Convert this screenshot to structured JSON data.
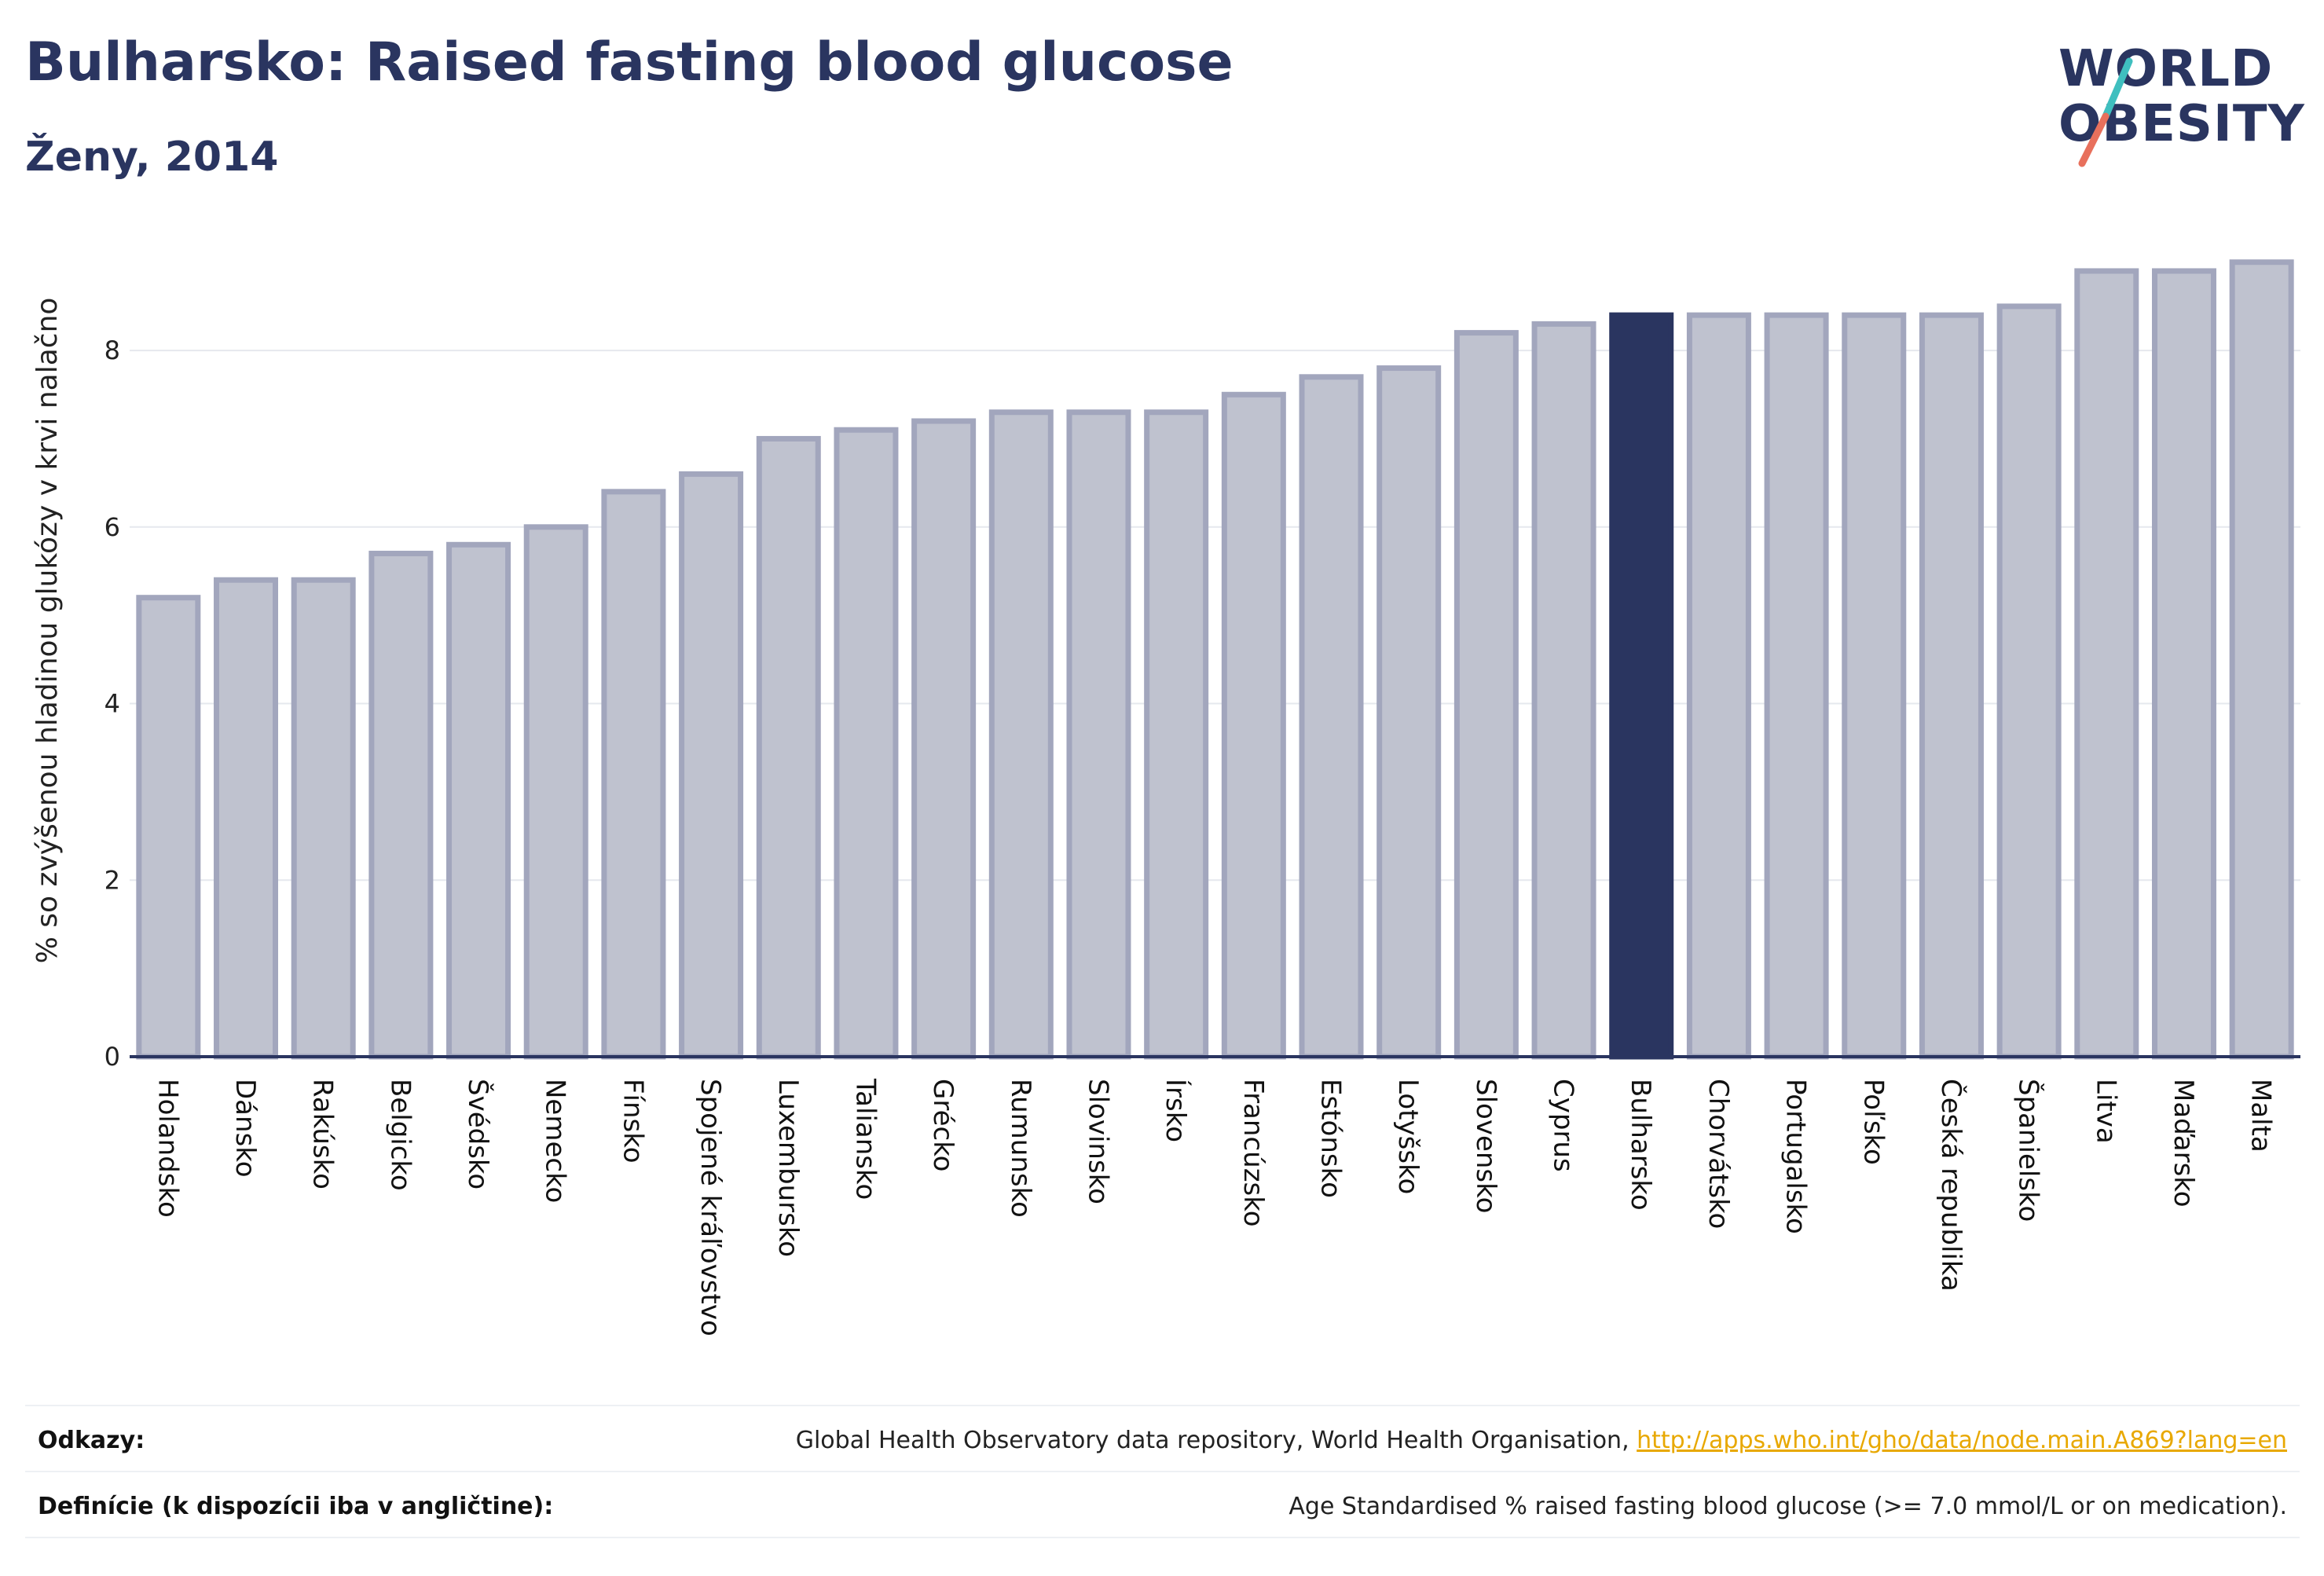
{
  "header": {
    "title": "Bulharsko: Raised fasting blood glucose",
    "subtitle": "Ženy, 2014"
  },
  "logo": {
    "line1": "WORLD",
    "line2": "OBESITY",
    "icon": "world-obesity-logo"
  },
  "colors": {
    "bar": "#bfc2cf",
    "bar_border": "#a2a6bd",
    "highlight": "#2a3560",
    "text": "#2a3560",
    "grid": "#e6e8ee"
  },
  "chart_data": {
    "type": "bar",
    "title": "Bulharsko: Raised fasting blood glucose",
    "subtitle": "Ženy, 2014",
    "xlabel": "",
    "ylabel": "% so zvýšenou hladinou glukózy v krvi nalačno",
    "ylim": [
      0,
      9.3
    ],
    "yticks": [
      0,
      2,
      4,
      6,
      8
    ],
    "grid": true,
    "highlight": "Bulharsko",
    "categories": [
      "Holandsko",
      "Dánsko",
      "Rakúsko",
      "Belgicko",
      "Švédsko",
      "Nemecko",
      "Fínsko",
      "Spojené kráľovstvo",
      "Luxembursko",
      "Taliansko",
      "Grécko",
      "Rumunsko",
      "Slovinsko",
      "Írsko",
      "Francúzsko",
      "Estónsko",
      "Lotyšsko",
      "Slovensko",
      "Cyprus",
      "Bulharsko",
      "Chorvátsko",
      "Portugalsko",
      "Poľsko",
      "Česká republika",
      "Španielsko",
      "Litva",
      "Maďarsko",
      "Malta"
    ],
    "values": [
      5.2,
      5.4,
      5.4,
      5.7,
      5.8,
      6.0,
      6.4,
      6.6,
      7.0,
      7.1,
      7.2,
      7.3,
      7.3,
      7.3,
      7.5,
      7.7,
      7.8,
      8.2,
      8.3,
      8.4,
      8.4,
      8.4,
      8.4,
      8.4,
      8.5,
      8.9,
      8.9,
      9.0
    ]
  },
  "footer": {
    "references_label": "Odkazy:",
    "references_text": "Global Health Observatory data repository, World Health Organisation, ",
    "references_link": "http://apps.who.int/gho/data/node.main.A869?lang=en",
    "definitions_label": "Definície (k dispozícii iba v angličtine):",
    "definitions_text": "Age Standardised % raised fasting blood glucose (>= 7.0 mmol/L or on medication)."
  }
}
